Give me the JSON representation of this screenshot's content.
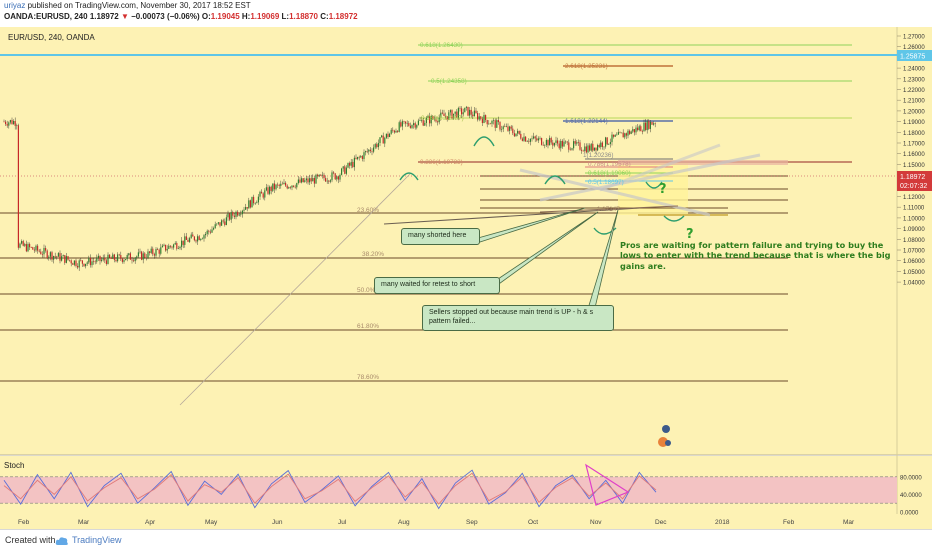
{
  "header": {
    "author": "uriyaz",
    "published_text": "published on TradingView.com, November 30, 2017 18:52 EST",
    "symbol_line": "OANDA:EURUSD, 240",
    "last": "1.18972",
    "arrow": "▼",
    "change": "−0.00073 (−0.06%)",
    "o_label": "O:",
    "o": "1.19045",
    "h_label": "H:",
    "h": "1.19069",
    "l_label": "L:",
    "l": "1.18870",
    "c_label": "C:",
    "c": "1.18972"
  },
  "chart_data": [
    {
      "type": "candlestick",
      "title": "EUR/USD, 240, OANDA",
      "x": [
        "Feb",
        "Mar",
        "Apr",
        "May",
        "Jun",
        "Jul",
        "Aug",
        "Sep",
        "Oct",
        "Nov",
        "Dec",
        "2018",
        "Feb",
        "Mar"
      ],
      "ylim": [
        1.03,
        1.275
      ],
      "y_ticks": [
        "1.27000",
        "1.26000",
        "1.25000",
        "1.24000",
        "1.23000",
        "1.22000",
        "1.21000",
        "1.20000",
        "1.19000",
        "1.18000",
        "1.17000",
        "1.16000",
        "1.15000",
        "1.14000",
        "1.13000",
        "1.12000",
        "1.11000",
        "1.10000",
        "1.09000",
        "1.08000",
        "1.07000",
        "1.06000",
        "1.05000",
        "1.04000"
      ],
      "series": [
        {
          "x": [
            "Feb",
            "Mar",
            "Apr",
            "May",
            "Jun",
            "Jul",
            "Aug",
            "Sep",
            "Oct",
            "Nov",
            "Dec"
          ],
          "values": [
            1.075,
            1.058,
            1.065,
            1.085,
            1.128,
            1.14,
            1.185,
            1.2,
            1.174,
            1.165,
            1.19
          ]
        }
      ],
      "price_labels": {
        "blue_line": "1.25875",
        "last_price": "1.18972",
        "countdown": "02:07:32"
      },
      "fib_retracement_labels": [
        "23.60%",
        "38.20%",
        "50.0%",
        "61.80%",
        "78.60%"
      ],
      "fib_extension_labels": [
        "0.618(1.26430)",
        "0.5(1.24358)",
        "0.382(1.22287)",
        "0.236(1.19723)",
        "2.618(1.25231)",
        "1.618(1.22144)",
        "1(1.20236)",
        "0.786(1.19578)",
        "0.618(1.19060)",
        "0.5(1.18697)",
        "1.17147"
      ],
      "annotations": [
        "many shorted here",
        "many waited for retest to short",
        "Sellers stopped out because main trend is UP - h & s pattern failed...",
        "Pros are waiting for pattern failure and trying to buy the lows to enter with the trend because that is where the big gains are.",
        "?",
        "?"
      ],
      "grid": false,
      "colors": {
        "background": "#fdf2b4",
        "candle_up": "#2e7d32",
        "candle_down": "#c62828",
        "blue_line": "#5fc6e8",
        "fib_green": "#8fd35a",
        "level_brown": "#6b4a2a"
      }
    },
    {
      "type": "line",
      "title": "Stoch",
      "ylim": [
        0,
        100
      ],
      "y_ticks": [
        "80.0000",
        "40.0000",
        "0.0000"
      ],
      "series": [
        {
          "values": [
            72,
            18,
            85,
            30,
            90,
            12,
            60,
            88,
            20,
            55,
            92,
            15,
            70,
            40,
            86,
            10,
            64,
            94,
            22,
            50,
            82,
            14,
            58,
            90,
            26,
            76,
            8,
            66,
            95,
            18,
            44,
            88,
            12,
            60,
            84,
            30,
            72,
            20,
            90,
            45
          ]
        },
        {
          "values": [
            60,
            30,
            72,
            40,
            80,
            25,
            55,
            78,
            30,
            52,
            85,
            25,
            62,
            45,
            78,
            20,
            58,
            86,
            30,
            48,
            74,
            24,
            55,
            82,
            34,
            68,
            18,
            60,
            88,
            26,
            46,
            80,
            22,
            56,
            78,
            36,
            66,
            30,
            82,
            50
          ]
        }
      ],
      "colors": {
        "band": "#f3c3c3",
        "k_line": "#5a6fd8",
        "d_line": "#e07a7a",
        "triangle": "#e040c8"
      }
    }
  ],
  "footer": {
    "created_with": "Created with",
    "brand": "TradingView"
  }
}
